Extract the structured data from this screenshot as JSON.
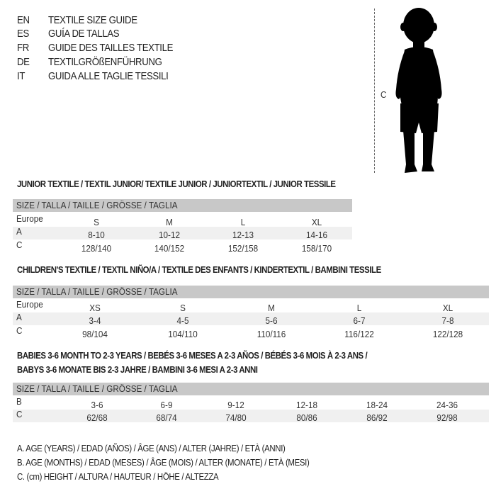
{
  "languages": [
    {
      "code": "EN",
      "title": "TEXTILE SIZE GUIDE"
    },
    {
      "code": "ES",
      "title": "GUÍA DE TALLAS"
    },
    {
      "code": "FR",
      "title": "GUIDE DES TAILLES TEXTILE"
    },
    {
      "code": "DE",
      "title": "TEXTILGRÖßENFÜHRUNG"
    },
    {
      "code": "IT",
      "title": "GUIDA ALLE TAGLIE TESSILI"
    }
  ],
  "figure": {
    "measure_label": "C",
    "icon": "baby-silhouette"
  },
  "size_header": "SIZE / TALLA / TAILLE / GRÖSSE / TAGLIA",
  "junior": {
    "heading": "JUNIOR TEXTILE / TEXTIL JUNIOR/ TEXTILE JUNIOR / JUNIORTEXTIL / JUNIOR TESSILE",
    "rows": [
      {
        "label": "Europe",
        "values": [
          "S",
          "M",
          "L",
          "XL"
        ]
      },
      {
        "label": "A",
        "values": [
          "8-10",
          "10-12",
          "12-13",
          "14-16"
        ]
      },
      {
        "label": "C",
        "values": [
          "128/140",
          "140/152",
          "152/158",
          "158/170"
        ]
      }
    ]
  },
  "children": {
    "heading": "CHILDREN'S TEXTILE / TEXTIL NIÑO/A / TEXTILE DES ENFANTS / KINDERTEXTIL / BAMBINI TESSILE",
    "rows": [
      {
        "label": "Europe",
        "values": [
          "XS",
          "S",
          "M",
          "L",
          "XL"
        ]
      },
      {
        "label": "A",
        "values": [
          "3-4",
          "4-5",
          "5-6",
          "6-7",
          "7-8"
        ]
      },
      {
        "label": "C",
        "values": [
          "98/104",
          "104/110",
          "110/116",
          "116/122",
          "122/128"
        ]
      }
    ]
  },
  "babies": {
    "heading_line1": "BABIES 3-6 MONTH TO 2-3 YEARS / BEBÉS 3-6 MESES A 2-3 AÑOS / BÉBÉS 3-6 MOIS À 2-3 ANS /",
    "heading_line2": "BABYS 3-6 MONATE BIS 2-3 JAHRE / BAMBINI 3-6 MESI A 2-3 ANNI",
    "rows": [
      {
        "label": "B",
        "values": [
          "3-6",
          "6-9",
          "9-12",
          "12-18",
          "18-24",
          "24-36"
        ]
      },
      {
        "label": "C",
        "values": [
          "62/68",
          "68/74",
          "74/80",
          "80/86",
          "86/92",
          "92/98"
        ]
      }
    ]
  },
  "legend": [
    "A. AGE (YEARS) / EDAD (AÑOS) / ÂGE (ANS) / ALTER (JAHRE) / ETÀ (ANNI)",
    "B. AGE (MONTHS) / EDAD (MESES) / ÂGE (MOIS) / ALTER (MONATE) / ETÀ (MESI)",
    "C. (cm) HEIGHT / ALTURA / HAUTEUR / HÖHE / ALTEZZA"
  ]
}
